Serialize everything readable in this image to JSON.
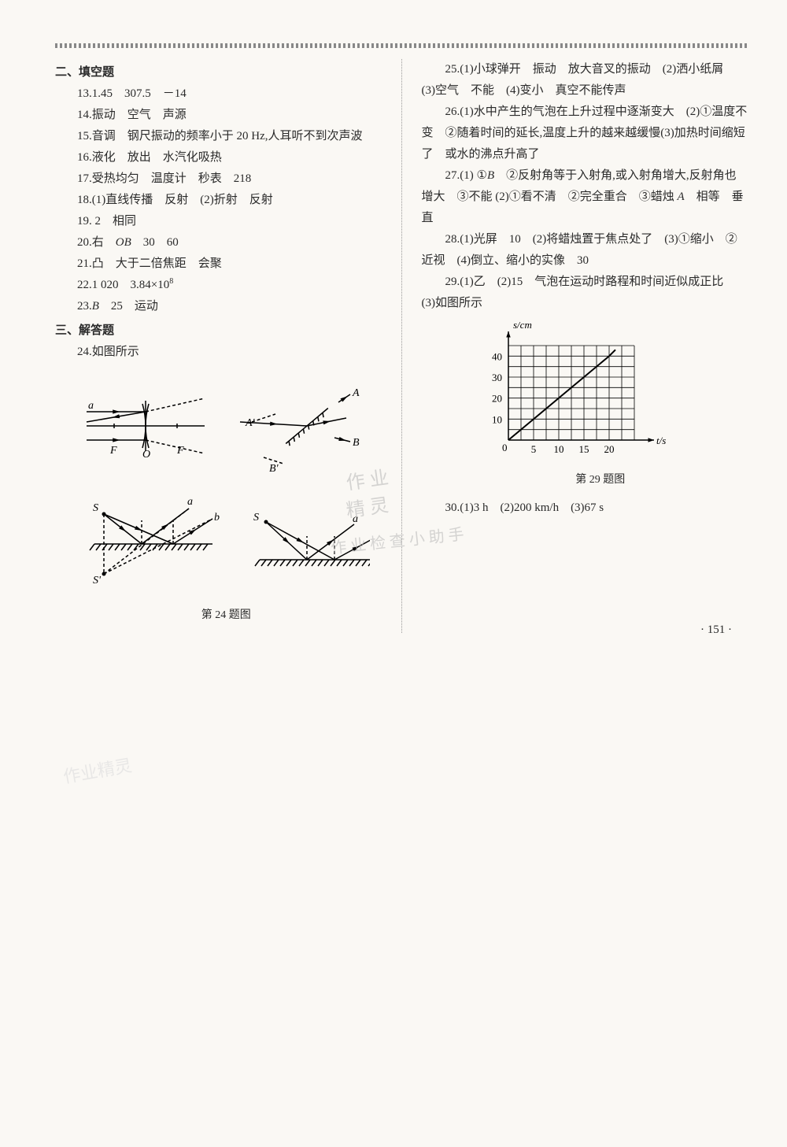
{
  "sections": {
    "fill_blank_title": "二、填空题",
    "solve_title": "三、解答题"
  },
  "left_answers": {
    "a13": "13.1.45　307.5　－14",
    "a14": "14.振动　空气　声源",
    "a15": "15.音调　钢尺振动的频率小于 20 Hz,人耳听不到次声波",
    "a16": "16.液化　放出　水汽化吸热",
    "a17": "17.受热均匀　温度计　秒表　218",
    "a18": "18.(1)直线传播　反射　(2)折射　反射",
    "a19": "19. 2　相同",
    "a20_pre": "20.右　",
    "a20_ob": "OB",
    "a20_post": "　30　60",
    "a21": "21.凸　大于二倍焦距　会聚",
    "a22_pre": "22.1 020　3.84×10",
    "a22_exp": "8",
    "a23_pre": "23.",
    "a23_b": "B",
    "a23_post": "　25　运动",
    "a24": "24.如图所示"
  },
  "right_answers": {
    "a25": "25.(1)小球弹开　振动　放大音叉的振动　(2)洒小纸屑　(3)空气　不能　(4)变小　真空不能传声",
    "a26": "26.(1)水中产生的气泡在上升过程中逐渐变大　(2)①温度不变　②随着时间的延长,温度上升的越来越缓慢(3)加热时间缩短了　或水的沸点升高了",
    "a27_pre": "27.(1) ①",
    "a27_b": "B",
    "a27_mid": "　②反射角等于入射角,或入射角增大,反射角也增大　③不能 (2)①看不清　②完全重合　③蜡烛 ",
    "a27_a": "A",
    "a27_post": "　相等　垂直",
    "a28": "28.(1)光屏　10　(2)将蜡烛置于焦点处了　(3)①缩小　②近视　(4)倒立、缩小的实像　30",
    "a29": "29.(1)乙　(2)15　气泡在运动时路程和时间近似成正比　(3)如图所示",
    "a30": "30.(1)3 h　(2)200 km/h　(3)67 s"
  },
  "captions": {
    "fig24": "第 24 题图",
    "fig29": "第 29 题图"
  },
  "page_number": "· 151 ·",
  "watermarks": {
    "w1": "作 业",
    "w2": "精 灵",
    "w3": "作 业 检 查 小 助 手",
    "w4": "作业精灵"
  },
  "chart29": {
    "type": "line",
    "x_label": "t/s",
    "y_label": "s/cm",
    "x_ticks": [
      0,
      5,
      10,
      15,
      20
    ],
    "y_ticks": [
      0,
      10,
      20,
      30,
      40
    ],
    "xlim": [
      0,
      25
    ],
    "ylim": [
      0,
      45
    ],
    "data_points": [
      [
        0,
        0
      ],
      [
        5,
        10
      ],
      [
        10,
        20
      ],
      [
        15,
        30
      ],
      [
        20,
        40
      ]
    ],
    "line_color": "#000000",
    "grid_color": "#000000",
    "background_color": "#faf8f4",
    "axis_fontsize": 13,
    "grid_cols": 10,
    "grid_rows": 9
  },
  "diagram24": {
    "stroke": "#000000",
    "stroke_width": 1.5,
    "labels": {
      "a": "a",
      "b": "b",
      "F1": "F",
      "F2": "F",
      "O": "O",
      "A": "A",
      "Ap": "A'",
      "B": "B",
      "Bp": "B'",
      "S": "S",
      "Sp": "S'"
    }
  }
}
